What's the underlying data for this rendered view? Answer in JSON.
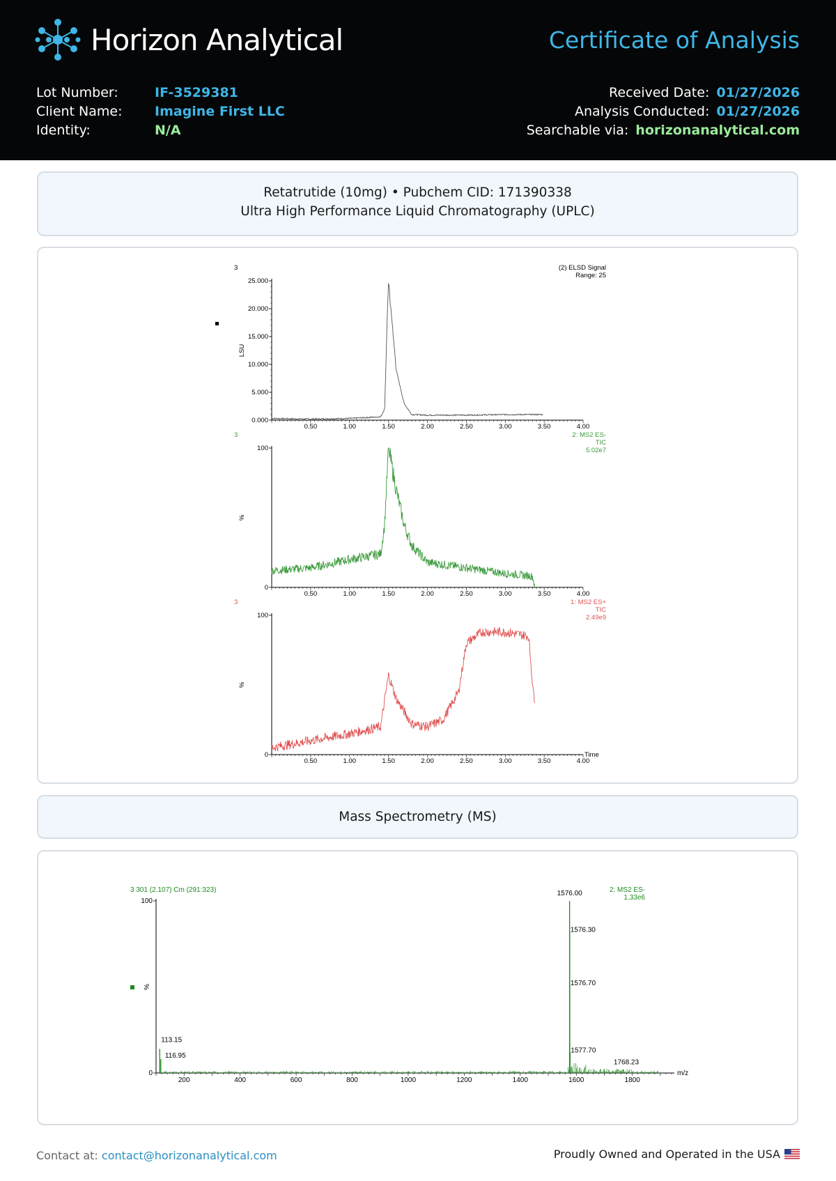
{
  "header": {
    "brand": "Horizon Analytical",
    "title": "Certificate of Analysis",
    "left_fields": [
      {
        "label": "Lot Number:",
        "value": "IF-3529381",
        "color": "#3fb6e6"
      },
      {
        "label": "Client Name:",
        "value": "Imagine First LLC",
        "color": "#3fb6e6"
      },
      {
        "label": "Identity:",
        "value": "N/A",
        "color": "#9beb9b"
      }
    ],
    "right_fields": [
      {
        "label": "Received Date:",
        "value": "01/27/2026",
        "color": "#3fb6e6"
      },
      {
        "label": "Analysis Conducted:",
        "value": "01/27/2026",
        "color": "#3fb6e6"
      },
      {
        "label": "Searchable via:",
        "value": "horizonanalytical.com",
        "color": "#9beb9b"
      }
    ]
  },
  "uplc_section": {
    "line1": "Retatrutide (10mg) • Pubchem CID: 171390338",
    "line2": "Ultra High Performance Liquid Chromatography (UPLC)"
  },
  "ms_section": {
    "title": "Mass Spectrometry (MS)"
  },
  "chromatograms": [
    {
      "id": "elsd",
      "color": "#555555",
      "left_label": "3",
      "left_label_color": "#000000",
      "right_labels": [
        "(2) ELSD Signal",
        "Range: 25"
      ],
      "ylabel": "LSU",
      "y_ticks": [
        "0.000",
        "5.000",
        "10.000",
        "15.000",
        "20.000",
        "25.000"
      ],
      "x_ticks": [
        "0.50",
        "1.00",
        "1.50",
        "2.00",
        "2.50",
        "3.00",
        "3.50",
        "4.00"
      ],
      "x_end_label": ""
    },
    {
      "id": "ms2-es-minus",
      "color": "#3b9a3b",
      "left_label": "3",
      "left_label_color": "#3b9a3b",
      "right_labels": [
        "2: MS2 ES-",
        "TIC",
        "5.02e7"
      ],
      "ylabel": "%",
      "y_ticks": [
        "0",
        "100"
      ],
      "x_ticks": [
        "0.50",
        "1.00",
        "1.50",
        "2.00",
        "2.50",
        "3.00",
        "3.50",
        "4.00"
      ],
      "x_end_label": ""
    },
    {
      "id": "ms2-es-plus",
      "color": "#e05252",
      "left_label": "3",
      "left_label_color": "#e05252",
      "right_labels": [
        "1: MS2 ES+",
        "TIC",
        "2.49e9"
      ],
      "ylabel": "%",
      "y_ticks": [
        "0",
        "100"
      ],
      "x_ticks": [
        "0.50",
        "1.00",
        "1.50",
        "2.00",
        "2.50",
        "3.00",
        "3.50",
        "4.00"
      ],
      "x_end_label": "Time"
    }
  ],
  "spectrum": {
    "color": "#1f8a1f",
    "header_left": "3 301 (2.107) Cm (291:323)",
    "header_right": [
      "2: MS2 ES-",
      "1.33e6"
    ],
    "ylabel": "%",
    "y_ticks": [
      "0",
      "100"
    ],
    "x_ticks": [
      "200",
      "400",
      "600",
      "800",
      "1000",
      "1200",
      "1400",
      "1600",
      "1800"
    ],
    "x_end_label": "m/z",
    "peak_labels": [
      "1576.00",
      "1576.30",
      "1576.70",
      "1577.70",
      "1768.23",
      "113.15",
      "116.95"
    ]
  },
  "chart_data": [
    {
      "type": "line",
      "name": "(2) ELSD Signal",
      "xlabel": "",
      "ylabel": "LSU",
      "xlim": [
        0,
        4.0
      ],
      "ylim": [
        0,
        25
      ],
      "x": [
        0.0,
        0.5,
        1.0,
        1.4,
        1.45,
        1.48,
        1.5,
        1.53,
        1.6,
        1.7,
        1.8,
        2.0,
        2.5,
        3.0,
        3.48
      ],
      "y": [
        0.3,
        0.2,
        0.3,
        0.6,
        2.0,
        16.0,
        25.0,
        20.0,
        9.0,
        3.0,
        1.0,
        0.9,
        0.9,
        1.0,
        1.0
      ]
    },
    {
      "type": "line",
      "name": "2: MS2 ES- TIC 5.02e7",
      "xlabel": "",
      "ylabel": "%",
      "xlim": [
        0,
        4.0
      ],
      "ylim": [
        0,
        100
      ],
      "x": [
        0.0,
        0.5,
        1.0,
        1.4,
        1.45,
        1.5,
        1.55,
        1.6,
        1.7,
        1.8,
        2.0,
        2.5,
        3.0,
        3.35,
        3.38
      ],
      "y": [
        12,
        14,
        20,
        24,
        45,
        100,
        85,
        70,
        45,
        30,
        18,
        14,
        10,
        8,
        0
      ]
    },
    {
      "type": "line",
      "name": "1: MS2 ES+ TIC 2.49e9",
      "xlabel": "Time",
      "ylabel": "%",
      "xlim": [
        0,
        4.0
      ],
      "ylim": [
        0,
        100
      ],
      "x": [
        0.0,
        0.5,
        1.0,
        1.4,
        1.5,
        1.6,
        1.8,
        2.0,
        2.2,
        2.4,
        2.5,
        2.7,
        3.0,
        3.3,
        3.36,
        3.38
      ],
      "y": [
        5,
        10,
        15,
        20,
        57,
        40,
        22,
        20,
        25,
        45,
        80,
        88,
        88,
        85,
        45,
        40
      ]
    },
    {
      "type": "bar",
      "name": "2: MS2 ES- 1.33e6",
      "xlabel": "m/z",
      "ylabel": "%",
      "xlim": [
        100,
        1950
      ],
      "ylim": [
        0,
        100
      ],
      "peaks": [
        {
          "mz": 113.15,
          "intensity": 14,
          "label": "113.15"
        },
        {
          "mz": 116.95,
          "intensity": 8,
          "label": "116.95"
        },
        {
          "mz": 1576.0,
          "intensity": 100,
          "label": "1576.00"
        },
        {
          "mz": 1576.3,
          "intensity": 82,
          "label": "1576.30"
        },
        {
          "mz": 1576.7,
          "intensity": 51,
          "label": "1576.70"
        },
        {
          "mz": 1577.7,
          "intensity": 12,
          "label": "1577.70"
        },
        {
          "mz": 1768.23,
          "intensity": 2,
          "label": "1768.23"
        }
      ]
    }
  ]
}
